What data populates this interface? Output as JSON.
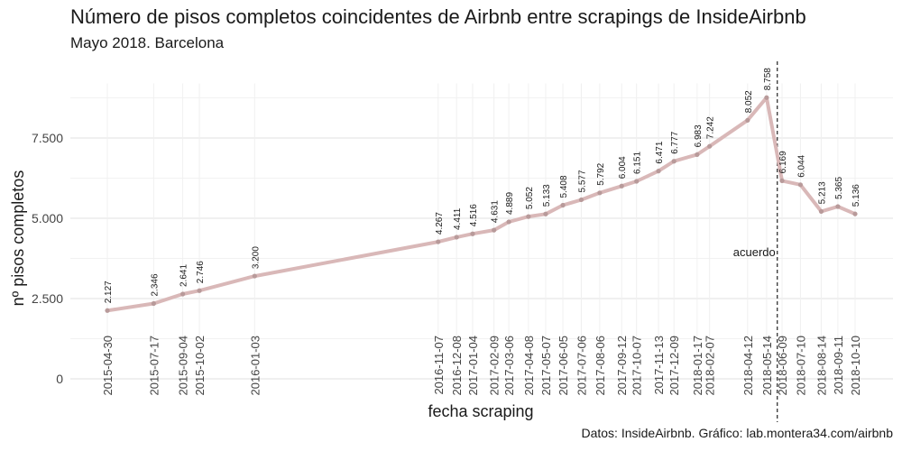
{
  "title": "Número de pisos completos coincidentes de Airbnb entre scrapings de InsideAirbnb",
  "subtitle": "Mayo 2018. Barcelona",
  "caption": "Datos: InsideAirbnb. Gráfico: lab.montera34.com/airbnb",
  "chart_data": {
    "type": "line",
    "xlabel": "fecha scraping",
    "ylabel": "nº pisos completos",
    "ylim": [
      0,
      9200
    ],
    "yticks": [
      0,
      2500,
      5000,
      7500
    ],
    "ytick_labels": [
      "0",
      "2.500",
      "5.000",
      "7.500"
    ],
    "grid": true,
    "line_color": "#d9b8b8",
    "point_color": "#b89a9a",
    "x": [
      "2015-04-30",
      "2015-07-17",
      "2015-09-04",
      "2015-10-02",
      "2016-01-03",
      "2016-11-07",
      "2016-12-08",
      "2017-01-04",
      "2017-02-09",
      "2017-03-06",
      "2017-04-08",
      "2017-05-07",
      "2017-06-05",
      "2017-07-06",
      "2017-08-06",
      "2017-09-12",
      "2017-10-07",
      "2017-11-13",
      "2017-12-09",
      "2018-01-17",
      "2018-02-07",
      "2018-04-12",
      "2018-05-14",
      "2018-06-09",
      "2018-07-10",
      "2018-08-14",
      "2018-09-11",
      "2018-10-10"
    ],
    "values": [
      2127,
      2346,
      2641,
      2746,
      3200,
      4267,
      4411,
      4516,
      4631,
      4889,
      5052,
      5133,
      5408,
      5577,
      5792,
      6004,
      6151,
      6471,
      6777,
      6983,
      7242,
      8052,
      8758,
      6169,
      6044,
      5213,
      5365,
      5136
    ],
    "value_labels": [
      "2.127",
      "2.346",
      "2.641",
      "2.746",
      "3.200",
      "4.267",
      "4.411",
      "4.516",
      "4.631",
      "4.889",
      "5.052",
      "5.133",
      "5.408",
      "5.577",
      "5.792",
      "6.004",
      "6.151",
      "6.471",
      "6.777",
      "6.983",
      "7.242",
      "8.052",
      "8.758",
      "6.169",
      "6.044",
      "5.213",
      "5.365",
      "5.136"
    ],
    "annotation": {
      "x": "2018-06-01",
      "label": "acuerdo"
    }
  }
}
